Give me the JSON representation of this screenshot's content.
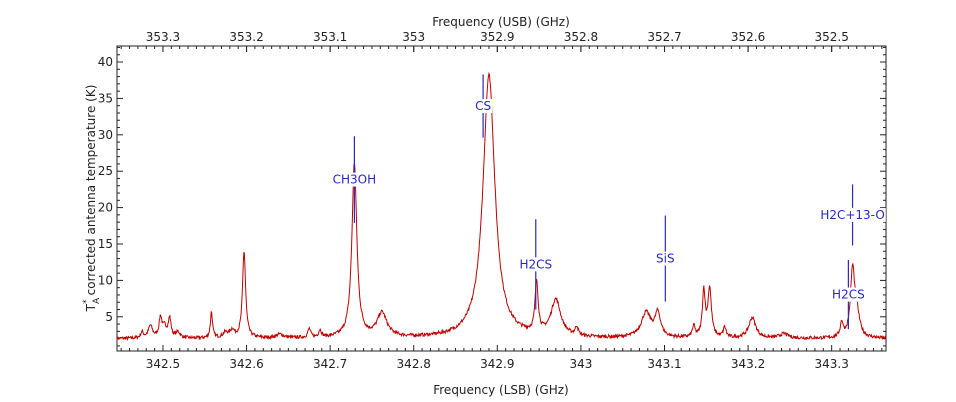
{
  "chart_data": {
    "type": "line",
    "title": "",
    "xlabel": "Frequency (LSB) (GHz)",
    "x2label": "Frequency (USB) (GHz)",
    "ylabel_prefix": "T",
    "ylabel_sub": "A",
    "ylabel_sup": "*",
    "ylabel_rest": "corrected antenna temperature (K)",
    "xlim": [
      342.445,
      343.365
    ],
    "ylim": [
      0.3,
      42.2
    ],
    "x_ticks": [
      "342.5",
      "342.6",
      "342.7",
      "342.8",
      "342.9",
      "343",
      "343.1",
      "343.2",
      "343.3"
    ],
    "x2_ticks": [
      "353.3",
      "353.2",
      "353.1",
      "353",
      "352.9",
      "352.8",
      "352.7",
      "352.6",
      "352.5"
    ],
    "y_ticks": [
      "5",
      "10",
      "15",
      "20",
      "25",
      "30",
      "35",
      "40"
    ],
    "usb_mirror_sum_ghz": 695.8,
    "baseline_k": 2.0,
    "peaks": [
      {
        "x": 342.475,
        "height": 0.8,
        "width": 0.002
      },
      {
        "x": 342.485,
        "height": 1.7,
        "width": 0.003
      },
      {
        "x": 342.497,
        "height": 2.7,
        "width": 0.002
      },
      {
        "x": 342.502,
        "height": 1.4,
        "width": 0.003
      },
      {
        "x": 342.508,
        "height": 2.6,
        "width": 0.002
      },
      {
        "x": 342.518,
        "height": 0.8,
        "width": 0.003
      },
      {
        "x": 342.558,
        "height": 3.6,
        "width": 0.0015
      },
      {
        "x": 342.575,
        "height": 0.7,
        "width": 0.004
      },
      {
        "x": 342.583,
        "height": 1.0,
        "width": 0.003
      },
      {
        "x": 342.597,
        "height": 11.9,
        "width": 0.0022
      },
      {
        "x": 342.64,
        "height": 0.5,
        "width": 0.005
      },
      {
        "x": 342.675,
        "height": 1.2,
        "width": 0.002
      },
      {
        "x": 342.688,
        "height": 1.0,
        "width": 0.002
      },
      {
        "x": 342.729,
        "height": 24.0,
        "width": 0.0035
      },
      {
        "x": 342.762,
        "height": 3.3,
        "width": 0.007
      },
      {
        "x": 342.89,
        "height": 36.2,
        "width": 0.0085
      },
      {
        "x": 342.947,
        "height": 7.0,
        "width": 0.0022
      },
      {
        "x": 342.97,
        "height": 5.0,
        "width": 0.007
      },
      {
        "x": 342.995,
        "height": 1.2,
        "width": 0.002
      },
      {
        "x": 343.078,
        "height": 3.4,
        "width": 0.007
      },
      {
        "x": 343.092,
        "height": 3.2,
        "width": 0.004
      },
      {
        "x": 343.135,
        "height": 1.5,
        "width": 0.002
      },
      {
        "x": 343.147,
        "height": 6.3,
        "width": 0.002
      },
      {
        "x": 343.154,
        "height": 6.7,
        "width": 0.0025
      },
      {
        "x": 343.172,
        "height": 1.4,
        "width": 0.002
      },
      {
        "x": 343.205,
        "height": 2.8,
        "width": 0.005
      },
      {
        "x": 343.243,
        "height": 0.6,
        "width": 0.006
      },
      {
        "x": 343.312,
        "height": 2.0,
        "width": 0.002
      },
      {
        "x": 343.325,
        "height": 9.0,
        "width": 0.003
      },
      {
        "x": 343.33,
        "height": 3.0,
        "width": 0.004
      }
    ],
    "line_ids": [
      {
        "label": "CH3OH",
        "x": 342.729,
        "y_low": 17.9,
        "y_high": 29.8
      },
      {
        "label": "CS",
        "x": 342.883,
        "y_low": 29.6,
        "y_high": 38.3
      },
      {
        "label": "H2CS",
        "x": 342.946,
        "y_low": 6.0,
        "y_high": 18.4
      },
      {
        "label": "SiS",
        "x": 343.101,
        "y_low": 7.1,
        "y_high": 18.9
      },
      {
        "label": "H2CS",
        "x": 343.32,
        "y_low": 3.3,
        "y_high": 12.8
      },
      {
        "label": "H2C+13-O",
        "x": 343.325,
        "y_low": 14.8,
        "y_high": 23.2
      }
    ],
    "colors": {
      "spectrum": "#c00000",
      "line_id": "#2a2ab8",
      "axis": "#222222"
    }
  }
}
